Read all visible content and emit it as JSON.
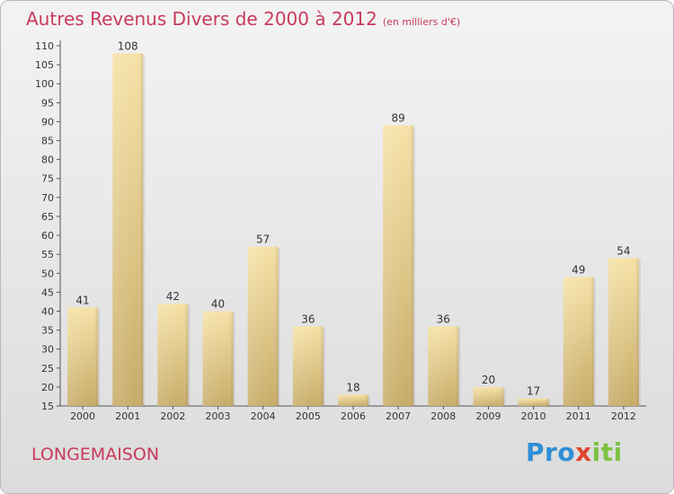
{
  "header": {
    "title": "Autres Revenus Divers de 2000 à 2012",
    "subtitle": "(en milliers d'€)"
  },
  "footer": {
    "place": "LONGEMAISON",
    "brand": {
      "p1": "Pro",
      "p2": "x",
      "p3": "iti"
    }
  },
  "colors": {
    "accent": "#c83a5c",
    "bar_light": "#f6e2a6",
    "bar_dark": "#c7ab67"
  },
  "chart_data": {
    "type": "bar",
    "title": "Autres Revenus Divers de 2000 à 2012",
    "subtitle": "(en milliers d'€)",
    "categories": [
      "2000",
      "2001",
      "2002",
      "2003",
      "2004",
      "2005",
      "2006",
      "2007",
      "2008",
      "2009",
      "2010",
      "2011",
      "2012"
    ],
    "values": [
      41,
      108,
      42,
      40,
      57,
      36,
      18,
      89,
      36,
      20,
      17,
      49,
      54
    ],
    "ylim": [
      15,
      110
    ],
    "yticks": [
      15,
      20,
      25,
      30,
      35,
      40,
      45,
      50,
      55,
      60,
      65,
      70,
      75,
      80,
      85,
      90,
      95,
      100,
      105,
      110
    ],
    "grid": false,
    "xlabel": "",
    "ylabel": ""
  }
}
